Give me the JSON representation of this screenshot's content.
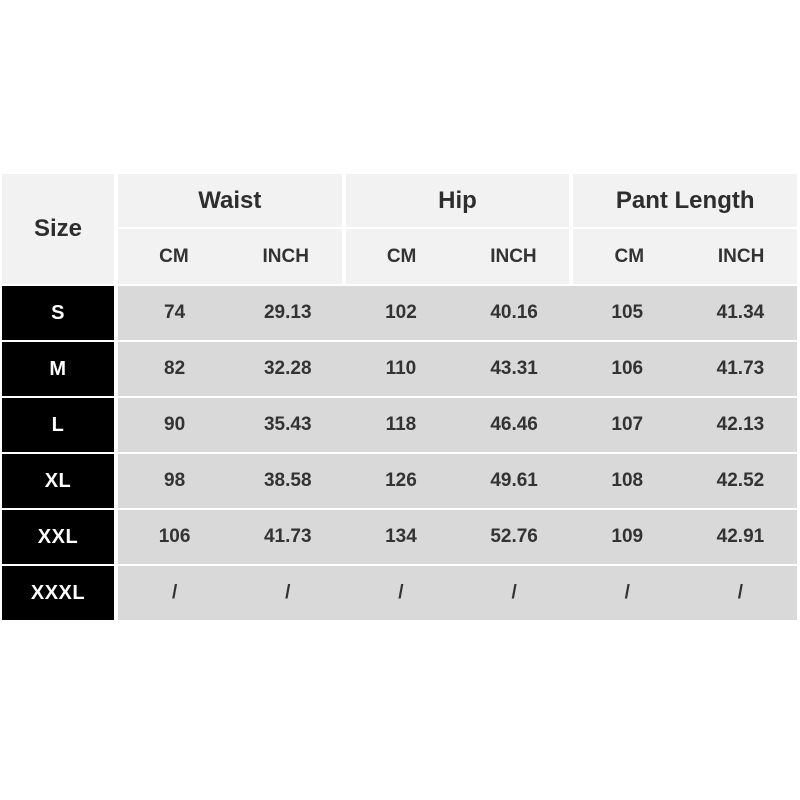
{
  "chart_data": {
    "type": "table",
    "size_column_header": "Size",
    "groups": [
      {
        "label": "Waist",
        "units": [
          "CM",
          "INCH"
        ]
      },
      {
        "label": "Hip",
        "units": [
          "CM",
          "INCH"
        ]
      },
      {
        "label": "Pant Length",
        "units": [
          "CM",
          "INCH"
        ]
      }
    ],
    "columns": [
      "Size",
      "Waist CM",
      "Waist INCH",
      "Hip CM",
      "Hip INCH",
      "Pant Length CM",
      "Pant Length INCH"
    ],
    "rows": [
      {
        "size": "S",
        "values": [
          "74",
          "29.13",
          "102",
          "40.16",
          "105",
          "41.34"
        ]
      },
      {
        "size": "M",
        "values": [
          "82",
          "32.28",
          "110",
          "43.31",
          "106",
          "41.73"
        ]
      },
      {
        "size": "L",
        "values": [
          "90",
          "35.43",
          "118",
          "46.46",
          "107",
          "42.13"
        ]
      },
      {
        "size": "XL",
        "values": [
          "98",
          "38.58",
          "126",
          "49.61",
          "108",
          "42.52"
        ]
      },
      {
        "size": "XXL",
        "values": [
          "106",
          "41.73",
          "134",
          "52.76",
          "109",
          "42.91"
        ]
      },
      {
        "size": "XXXL",
        "values": [
          "/",
          "/",
          "/",
          "/",
          "/",
          "/"
        ]
      }
    ]
  },
  "colors": {
    "page_background": "#ffffff",
    "header_background": "#f3f2f2",
    "data_row_background": "#dad9d9",
    "size_cell_background": "#000000",
    "size_cell_text": "#ffffff",
    "body_text": "#333333",
    "separator": "#ffffff"
  }
}
